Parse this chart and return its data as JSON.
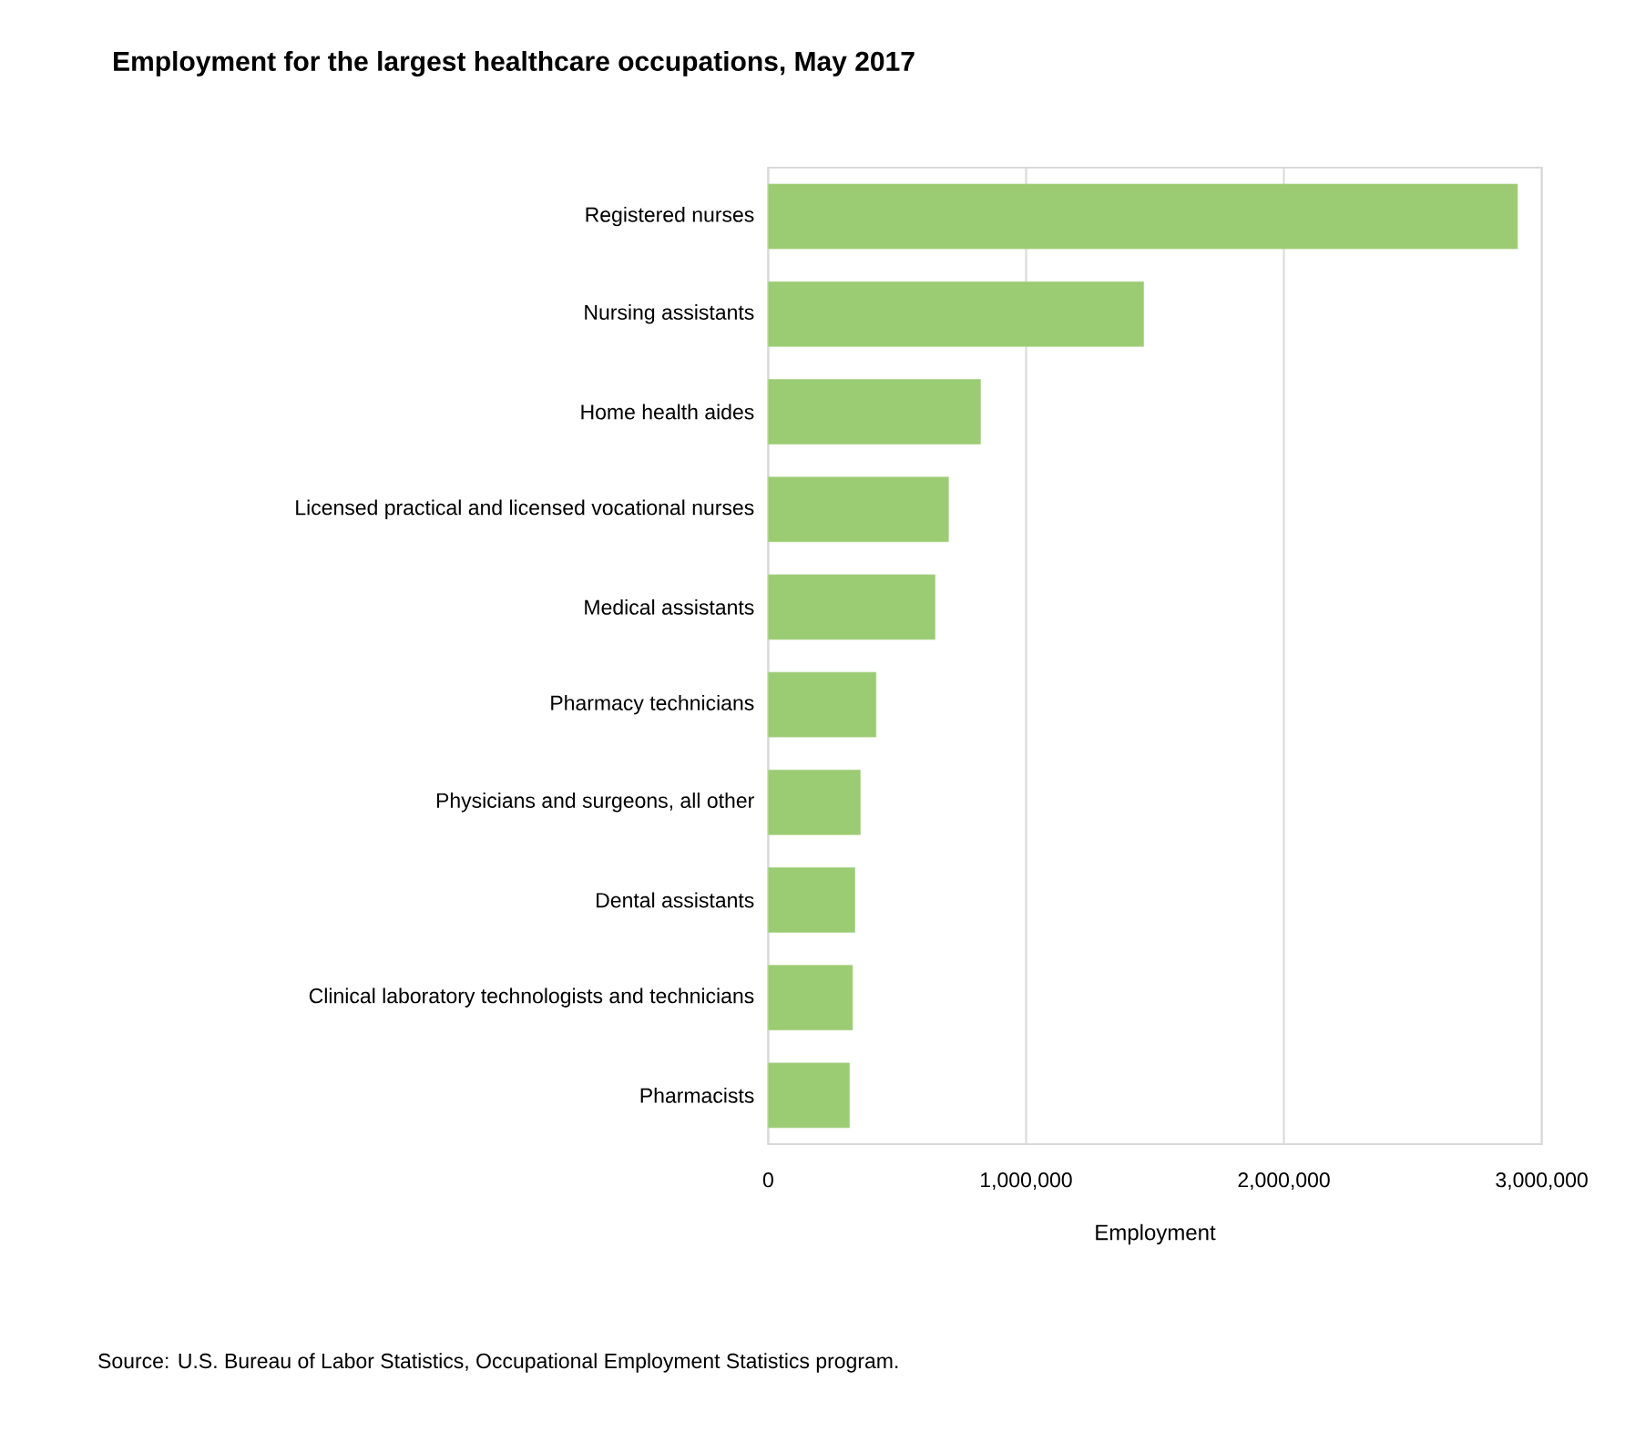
{
  "chart_data": {
    "type": "bar",
    "orientation": "horizontal",
    "title": "Employment for the largest healthcare occupations, May 2017",
    "xlabel": "Employment",
    "categories": [
      "Registered nurses",
      "Nursing assistants",
      "Home health aides",
      "Licensed practical and licensed vocational nurses",
      "Medical assistants",
      "Pharmacy technicians",
      "Physicians and surgeons, all other",
      "Dental assistants",
      "Clinical laboratory technologists and technicians",
      "Pharmacists"
    ],
    "values": [
      2906000,
      1456000,
      823000,
      699000,
      647000,
      418000,
      357000,
      336000,
      327000,
      315000
    ],
    "color": "#9bcb72",
    "xlim": [
      0,
      3000000
    ],
    "xticks": [
      0,
      {
        "value": 1000000,
        "label": "1,000,000"
      },
      {
        "value": 2000000,
        "label": "2,000,000"
      },
      {
        "value": 3000000,
        "label": "3,000,000"
      }
    ],
    "grid": "x",
    "annotations": [
      "Source: U.S. Bureau of Labor Statistics, Occupational Employment Statistics program."
    ]
  }
}
